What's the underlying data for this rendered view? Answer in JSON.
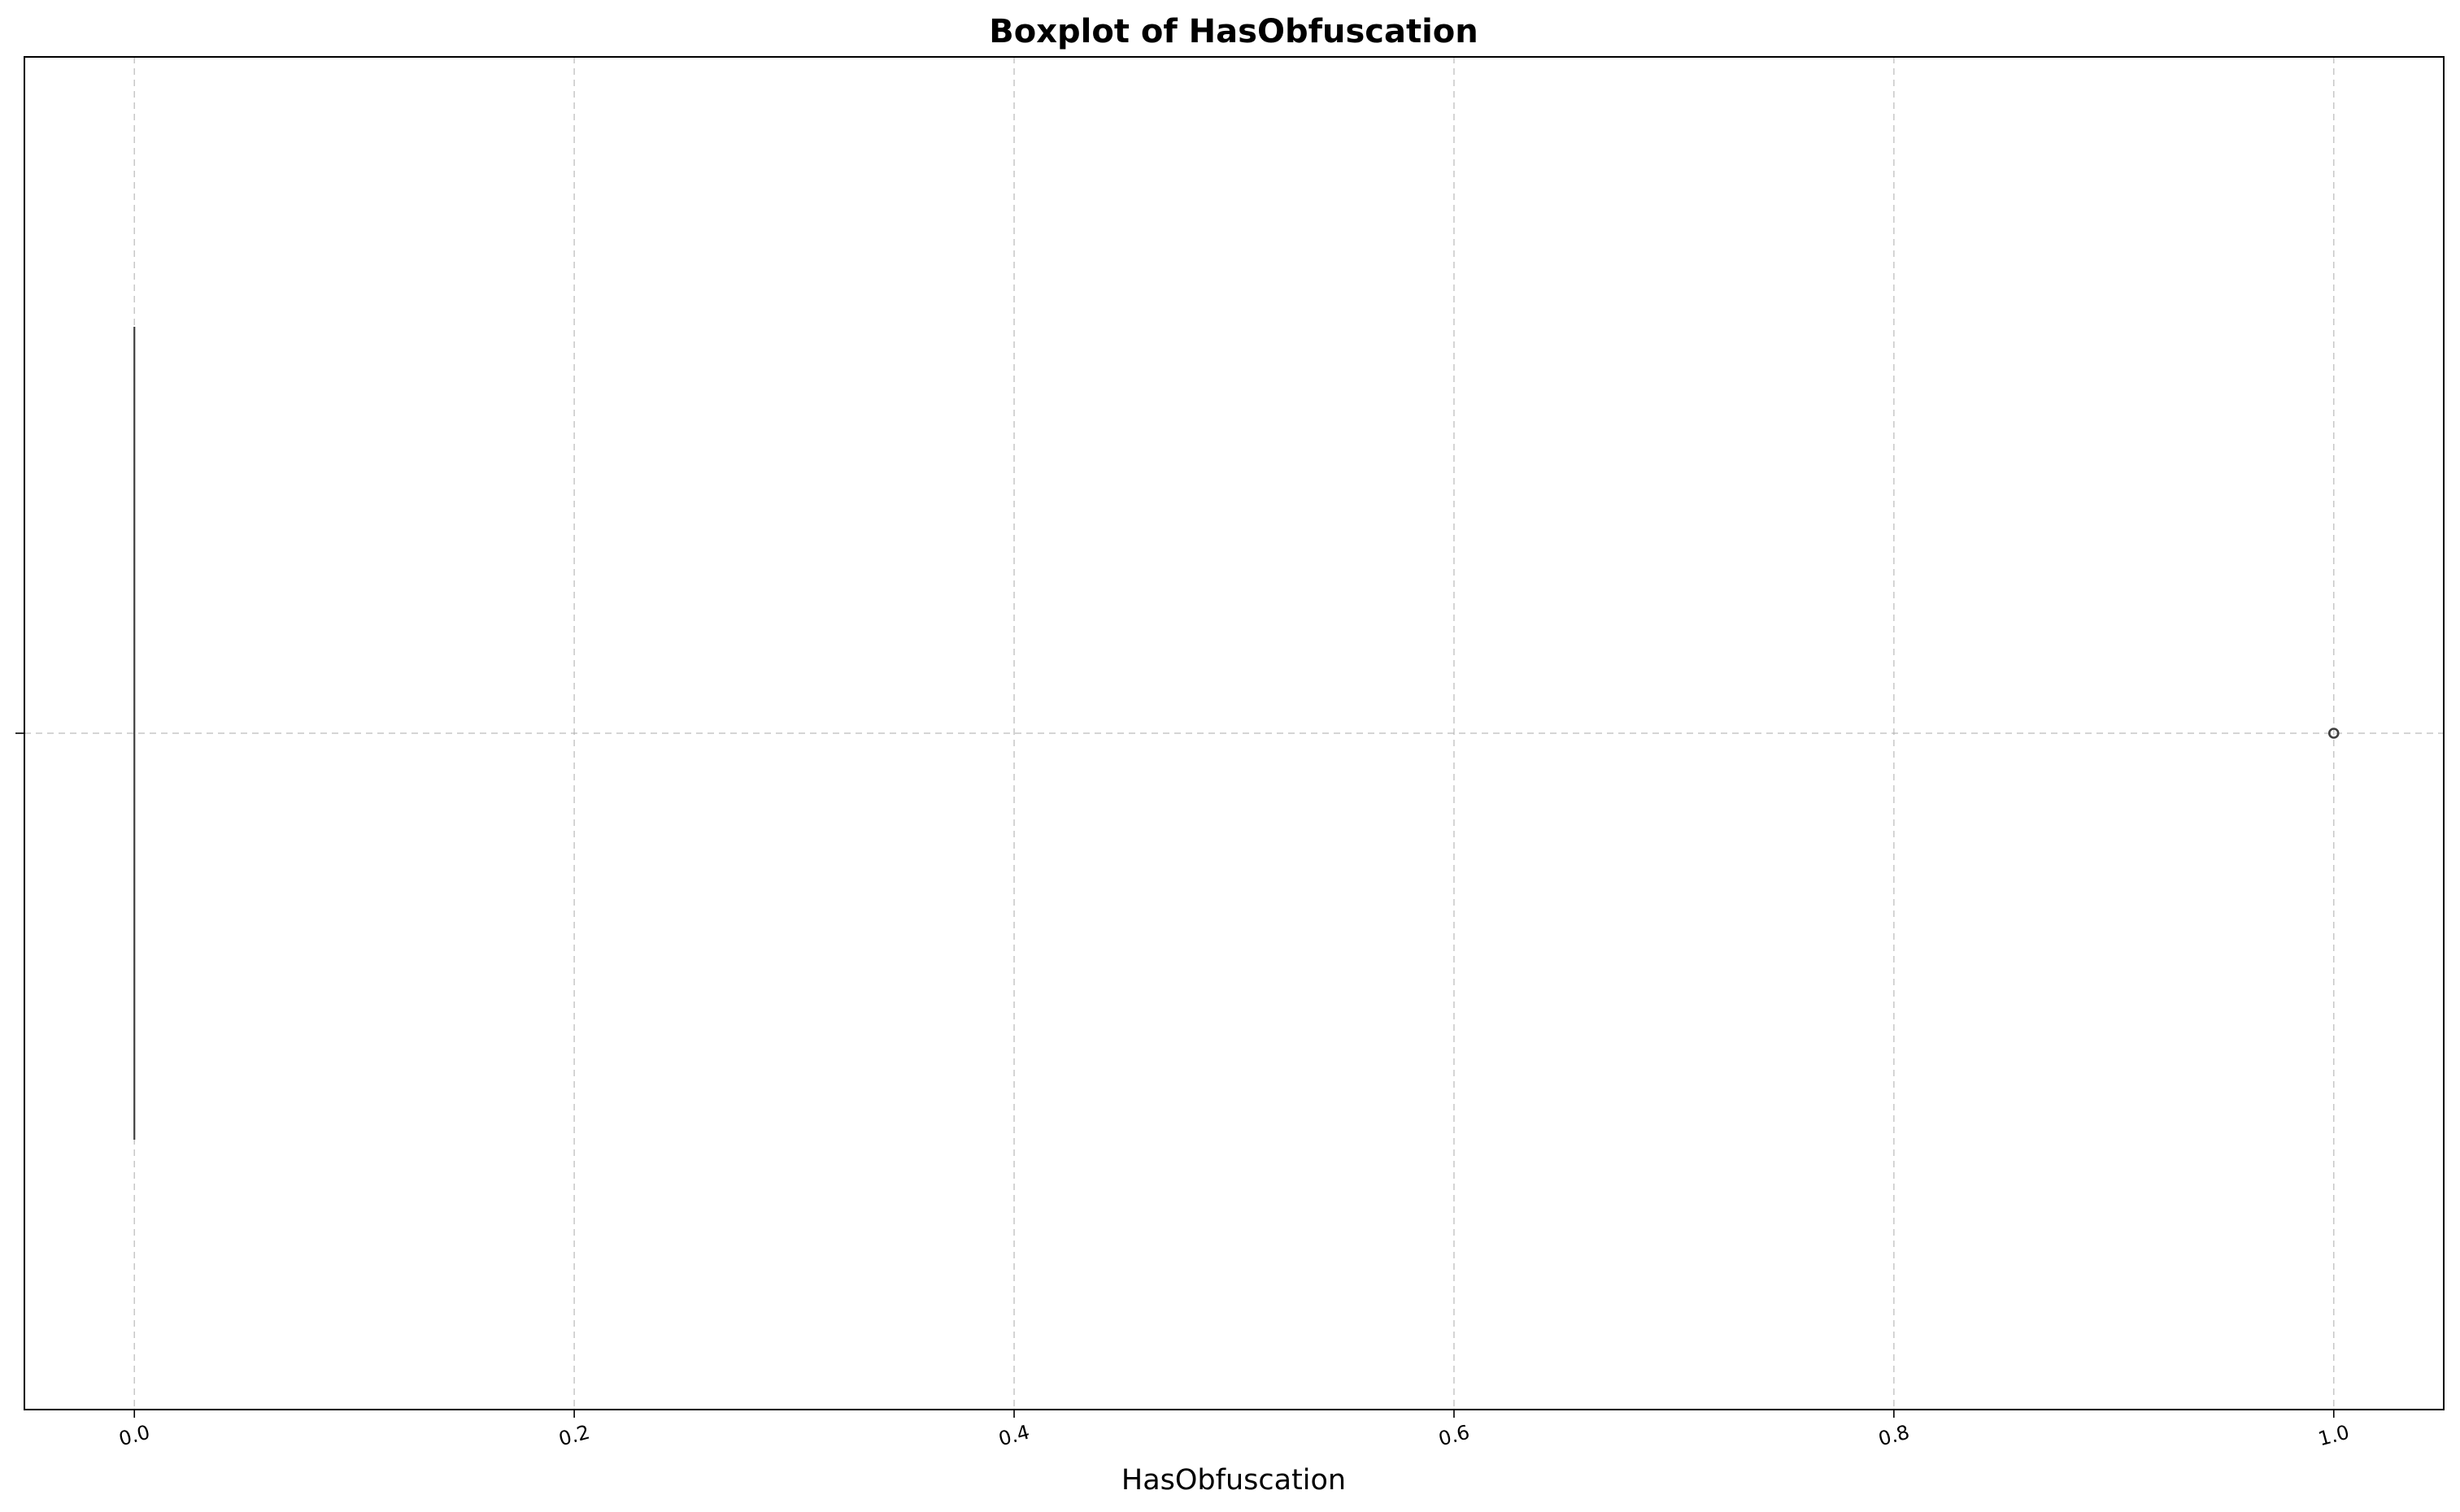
{
  "chart_data": {
    "type": "box",
    "title": "Boxplot of HasObfuscation",
    "xlabel": "HasObfuscation",
    "ylabel": "",
    "xlim": [
      -0.05,
      1.05
    ],
    "xticks": [
      0.0,
      0.2,
      0.4,
      0.6,
      0.8,
      1.0
    ],
    "xtick_labels": [
      "0.0",
      "0.2",
      "0.4",
      "0.6",
      "0.8",
      "1.0"
    ],
    "grid": true,
    "orientation": "horizontal",
    "box": {
      "min": 0.0,
      "q1": 0.0,
      "median": 0.0,
      "q3": 0.0,
      "max": 0.0,
      "outliers": [
        1.0
      ]
    },
    "colors": {
      "box_edge": "#3f3f3f",
      "grid": "#b0b0b0"
    }
  }
}
